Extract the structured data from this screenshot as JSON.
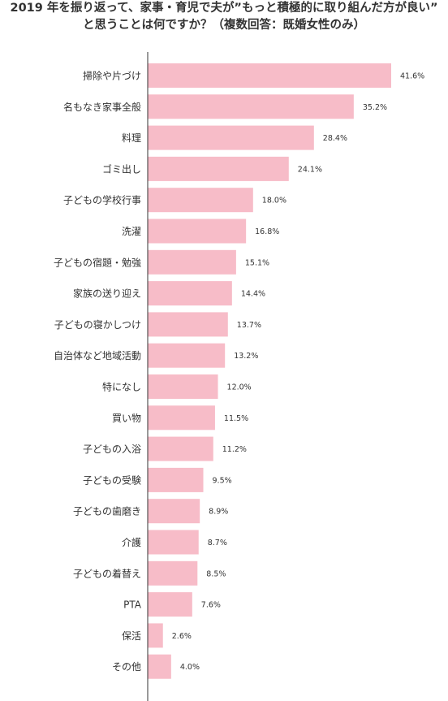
{
  "title_lines": [
    "2019 年を振り返って、家事・育児で夫が”もっと積極的に取り組んだ方が良い”",
    "と思うことは何ですか？（複数回答：既婚女性のみ）"
  ],
  "colors": {
    "bar": "#f7bcc8",
    "axis": "#333333",
    "text": "#333333"
  },
  "chart_data": {
    "type": "bar",
    "orientation": "horizontal",
    "title": "2019 年を振り返って、家事・育児で夫が”もっと積極的に取り組んだ方が良い”と思うことは何ですか？（複数回答：既婚女性のみ）",
    "xlim": [
      0,
      50
    ],
    "grid": false,
    "categories": [
      "掃除や片づけ",
      "名もなき家事全般",
      "料理",
      "ゴミ出し",
      "子どもの学校行事",
      "洗濯",
      "子どもの宿題・勉強",
      "家族の送り迎え",
      "子どもの寝かしつけ",
      "自治体など地域活動",
      "特になし",
      "買い物",
      "子どもの入浴",
      "子どもの受験",
      "子どもの歯磨き",
      "介護",
      "子どもの着替え",
      "PTA",
      "保活",
      "その他"
    ],
    "values": [
      41.6,
      35.2,
      28.4,
      24.1,
      18.0,
      16.8,
      15.1,
      14.4,
      13.7,
      13.2,
      12.0,
      11.5,
      11.2,
      9.5,
      8.9,
      8.7,
      8.5,
      7.6,
      2.6,
      4.0
    ],
    "value_labels": [
      "41.6%",
      "35.2%",
      "28.4%",
      "24.1%",
      "18.0%",
      "16.8%",
      "15.1%",
      "14.4%",
      "13.7%",
      "13.2%",
      "12.0%",
      "11.5%",
      "11.2%",
      "9.5%",
      "8.9%",
      "8.7%",
      "8.5%",
      "7.6%",
      "2.6%",
      "4.0%"
    ]
  }
}
